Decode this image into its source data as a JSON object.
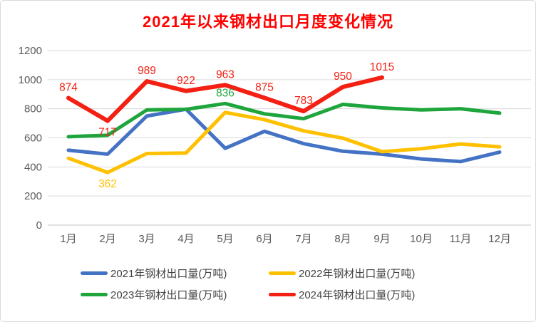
{
  "page": {
    "background": "#ffffff",
    "border_color": "#d9d9d9"
  },
  "chart_data": {
    "type": "line",
    "title": "2021年以来钢材出口月度变化情况",
    "title_color": "#ff0000",
    "xlabel": "",
    "ylabel": "",
    "ylim": [
      0,
      1200
    ],
    "ytick_step": 200,
    "yticks": [
      "0",
      "200",
      "400",
      "600",
      "800",
      "1000",
      "1200"
    ],
    "categories": [
      "1月",
      "2月",
      "3月",
      "4月",
      "5月",
      "6月",
      "7月",
      "8月",
      "9月",
      "10月",
      "11月",
      "12月"
    ],
    "grid": true,
    "gridline_color": "#d9d9d9",
    "axis_text_color": "#595959",
    "legend_position": "bottom",
    "legend_text_color": "#444444",
    "series": [
      {
        "name": "2021年钢材出口量(万吨)",
        "color": "#4472c4",
        "values": [
          515,
          488,
          750,
          797,
          528,
          645,
          560,
          508,
          488,
          455,
          437,
          502
        ]
      },
      {
        "name": "2022年钢材出口量(万吨)",
        "color": "#ffc000",
        "values": [
          460,
          362,
          492,
          496,
          775,
          725,
          648,
          598,
          505,
          525,
          558,
          538
        ]
      },
      {
        "name": "2023年钢材出口量(万吨)",
        "color": "#1ea53c",
        "values": [
          608,
          618,
          792,
          796,
          836,
          765,
          732,
          830,
          806,
          792,
          800,
          770
        ]
      },
      {
        "name": "2024年钢材出口量(万吨)",
        "color": "#f32013",
        "values": [
          874,
          717,
          989,
          922,
          963,
          875,
          783,
          950,
          1015
        ]
      }
    ],
    "data_labels": [
      {
        "series": 3,
        "points": [
          {
            "i": 0,
            "text": "874",
            "pos": "above"
          },
          {
            "i": 1,
            "text": "717",
            "pos": "below"
          },
          {
            "i": 2,
            "text": "989",
            "pos": "above"
          },
          {
            "i": 3,
            "text": "922",
            "pos": "above"
          },
          {
            "i": 4,
            "text": "963",
            "pos": "above"
          },
          {
            "i": 5,
            "text": "875",
            "pos": "above"
          },
          {
            "i": 6,
            "text": "783",
            "pos": "above"
          },
          {
            "i": 7,
            "text": "950",
            "pos": "above"
          },
          {
            "i": 8,
            "text": "1015",
            "pos": "above"
          }
        ]
      },
      {
        "series": 2,
        "points": [
          {
            "i": 4,
            "text": "836",
            "pos": "above"
          }
        ]
      },
      {
        "series": 1,
        "points": [
          {
            "i": 1,
            "text": "362",
            "pos": "below"
          }
        ]
      }
    ]
  }
}
